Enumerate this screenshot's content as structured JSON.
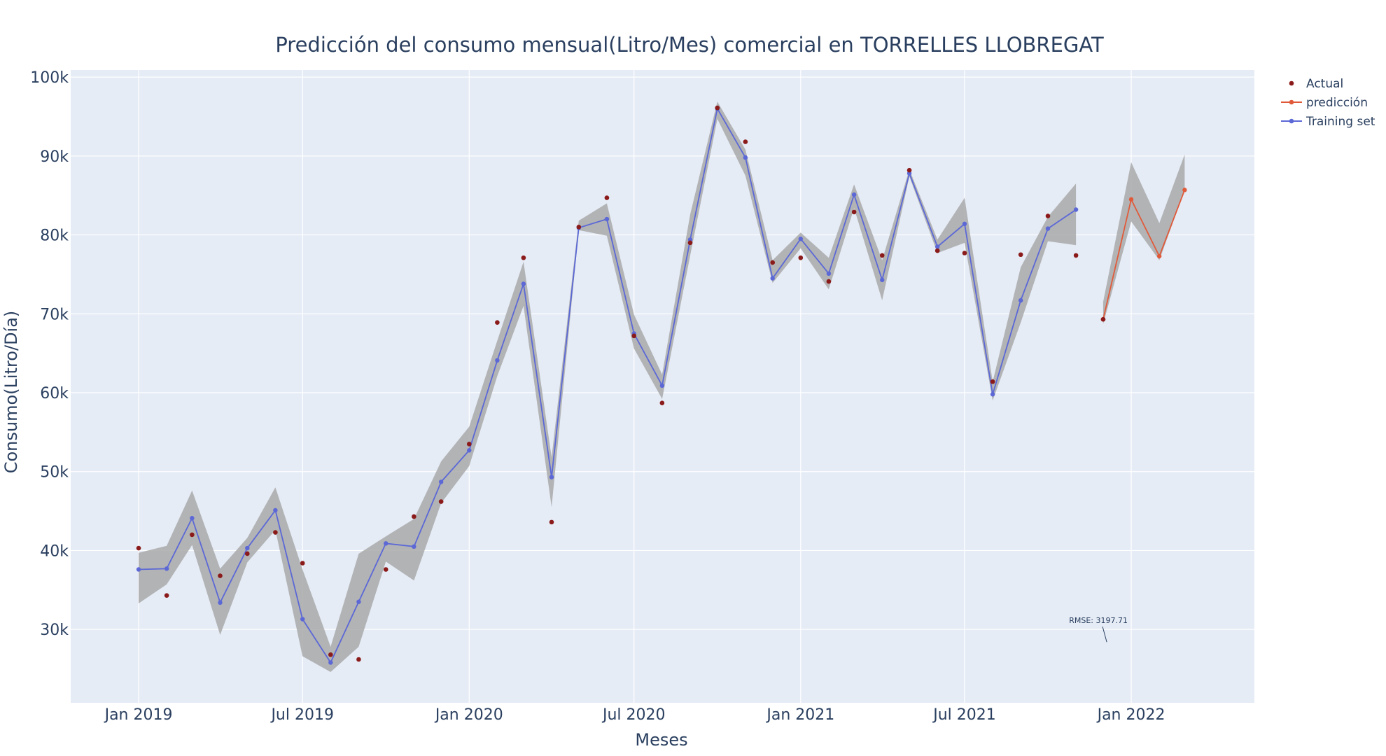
{
  "chart_data": {
    "type": "line",
    "title": "Predicción del consumo mensual(Litro/Mes) comercial en TORRELLES LLOBREGAT",
    "xlabel": "Meses",
    "ylabel": "Consumo(Litro/Día)",
    "x_tick_labels": [
      "Jan 2019",
      "Jul 2019",
      "Jan 2020",
      "Jul 2020",
      "Jan 2021",
      "Jul 2021",
      "Jan 2022"
    ],
    "y_tick_labels": [
      "30k",
      "40k",
      "50k",
      "60k",
      "70k",
      "80k",
      "90k",
      "100k"
    ],
    "xlim": [
      "2018-10-18",
      "2022-05-17"
    ],
    "ylim": [
      20700,
      100900
    ],
    "grid": true,
    "legend_position": "top-right",
    "colors": {
      "actual": "#8b1a1a",
      "prediction": "#e05a3a",
      "training": "#5b68d6",
      "band": "#a9a9a9",
      "plot_bg": "#e5ecf6"
    },
    "legend": [
      {
        "key": "actual",
        "label": "Actual",
        "mode": "markers"
      },
      {
        "key": "prediction",
        "label": "predicción",
        "mode": "lines+markers"
      },
      {
        "key": "training",
        "label": "Training set",
        "mode": "lines+markers"
      }
    ],
    "series": [
      {
        "name": "Actual",
        "mode": "markers",
        "x": [
          "2019-01-01",
          "2019-02-01",
          "2019-03-01",
          "2019-04-01",
          "2019-05-01",
          "2019-06-01",
          "2019-07-01",
          "2019-08-01",
          "2019-09-01",
          "2019-10-01",
          "2019-11-01",
          "2019-12-01",
          "2020-01-01",
          "2020-02-01",
          "2020-03-01",
          "2020-04-01",
          "2020-05-01",
          "2020-06-01",
          "2020-07-01",
          "2020-08-01",
          "2020-09-01",
          "2020-10-01",
          "2020-11-01",
          "2020-12-01",
          "2021-01-01",
          "2021-02-01",
          "2021-03-01",
          "2021-04-01",
          "2021-05-01",
          "2021-06-01",
          "2021-07-01",
          "2021-08-01",
          "2021-09-01",
          "2021-10-01",
          "2021-11-01",
          "2021-12-01"
        ],
        "y": [
          40300,
          34300,
          42000,
          36800,
          39600,
          42300,
          38400,
          26800,
          26200,
          37600,
          44300,
          46200,
          53500,
          68900,
          77100,
          43600,
          81000,
          84700,
          67200,
          58700,
          79000,
          96100,
          91800,
          76500,
          77100,
          74100,
          82900,
          77400,
          88200,
          78000,
          77700,
          61400,
          77500,
          82400,
          77400,
          69300
        ]
      },
      {
        "name": "Training set",
        "mode": "lines+markers",
        "x": [
          "2019-01-01",
          "2019-02-01",
          "2019-03-01",
          "2019-04-01",
          "2019-05-01",
          "2019-06-01",
          "2019-07-01",
          "2019-08-01",
          "2019-09-01",
          "2019-10-01",
          "2019-11-01",
          "2019-12-01",
          "2020-01-01",
          "2020-02-01",
          "2020-03-01",
          "2020-04-01",
          "2020-05-01",
          "2020-06-01",
          "2020-07-01",
          "2020-08-01",
          "2020-09-01",
          "2020-10-01",
          "2020-11-01",
          "2020-12-01",
          "2021-01-01",
          "2021-02-01",
          "2021-03-01",
          "2021-04-01",
          "2021-05-01",
          "2021-06-01",
          "2021-07-01",
          "2021-08-01",
          "2021-09-01",
          "2021-10-01",
          "2021-11-01"
        ],
        "y": [
          37600,
          37700,
          44100,
          33400,
          40300,
          45100,
          31300,
          25800,
          33500,
          40900,
          40500,
          48700,
          52700,
          64100,
          73800,
          49300,
          80900,
          82000,
          67500,
          60900,
          79400,
          96000,
          89800,
          74500,
          79500,
          75100,
          85100,
          74300,
          87800,
          78500,
          81400,
          59800,
          71700,
          80800,
          83200
        ],
        "band_upper": [
          39700,
          40600,
          47600,
          37700,
          41600,
          48000,
          37600,
          27800,
          39600,
          41800,
          44000,
          51300,
          55700,
          66600,
          76600,
          51800,
          81800,
          84000,
          69900,
          62300,
          82600,
          96900,
          90800,
          76800,
          80300,
          77100,
          86400,
          76800,
          88300,
          79400,
          84700,
          61400,
          75900,
          82300,
          86500
        ],
        "band_lower": [
          33300,
          35700,
          40700,
          29300,
          38500,
          42600,
          26600,
          24600,
          27800,
          38600,
          36200,
          46000,
          50700,
          62100,
          71000,
          45500,
          80600,
          79900,
          65600,
          59200,
          77400,
          94700,
          87500,
          73900,
          78300,
          73100,
          83400,
          71700,
          87400,
          77700,
          79000,
          59000,
          68900,
          79200,
          78700
        ]
      },
      {
        "name": "predicción",
        "mode": "lines+markers",
        "x": [
          "2021-12-01",
          "2022-01-01",
          "2022-02-01",
          "2022-03-01"
        ],
        "y": [
          69300,
          84500,
          77300,
          85700
        ],
        "band_upper": [
          71500,
          89200,
          81500,
          90200
        ],
        "band_lower": [
          68700,
          81700,
          76800,
          85700
        ]
      }
    ],
    "annotations": [
      {
        "text": "RMSE: 3197.71",
        "x": "2021-12-05",
        "y": 28400
      }
    ]
  }
}
